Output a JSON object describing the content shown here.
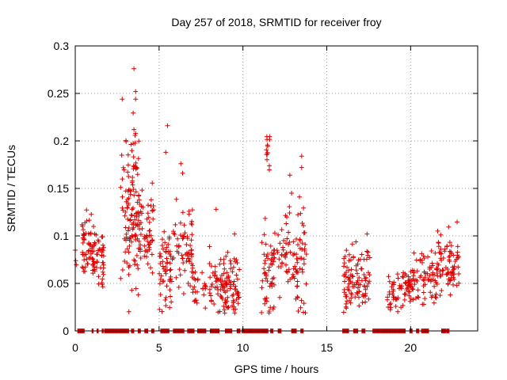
{
  "chart_data": {
    "type": "scatter",
    "title": "Day 257 of 2018, SRMTID for receiver froy",
    "xlabel": "GPS time / hours",
    "ylabel": "SRMTID / TECUs",
    "xlim": [
      0,
      24
    ],
    "ylim": [
      0,
      0.3
    ],
    "xticks": [
      0,
      5,
      10,
      15,
      20
    ],
    "xtick_labels": [
      "0",
      "5",
      "10",
      "15",
      "20"
    ],
    "yticks": [
      0,
      0.05,
      0.1,
      0.15,
      0.2,
      0.25,
      0.3
    ],
    "ytick_labels": [
      "0",
      "0.05",
      "0.1",
      "0.15",
      "0.2",
      "0.25",
      "0.3"
    ],
    "grid": true,
    "marker": "+",
    "series_color": "#dd0000",
    "clusters": [
      {
        "x_range": [
          0.0,
          0.1
        ],
        "y_center": 0.075,
        "y_spread": 0.005,
        "count": 3
      },
      {
        "x_range": [
          0.4,
          1.0
        ],
        "y_center": 0.085,
        "y_spread": 0.015,
        "count": 45
      },
      {
        "x_range": [
          1.0,
          1.7
        ],
        "y_center": 0.08,
        "y_spread": 0.015,
        "count": 55
      },
      {
        "x_range": [
          2.7,
          3.1
        ],
        "y_center": 0.12,
        "y_spread": 0.04,
        "count": 25
      },
      {
        "x_range": [
          3.1,
          3.8
        ],
        "y_center": 0.13,
        "y_spread": 0.04,
        "count": 95
      },
      {
        "x_range": [
          3.8,
          4.7
        ],
        "y_center": 0.105,
        "y_spread": 0.02,
        "count": 60
      },
      {
        "x_range": [
          5.0,
          5.8
        ],
        "y_center": 0.06,
        "y_spread": 0.025,
        "count": 55
      },
      {
        "x_range": [
          5.8,
          7.0
        ],
        "y_center": 0.09,
        "y_spread": 0.025,
        "count": 65
      },
      {
        "x_range": [
          7.0,
          8.0
        ],
        "y_center": 0.045,
        "y_spread": 0.01,
        "count": 25
      },
      {
        "x_range": [
          8.0,
          9.0
        ],
        "y_center": 0.05,
        "y_spread": 0.017,
        "count": 60
      },
      {
        "x_range": [
          9.0,
          9.8
        ],
        "y_center": 0.05,
        "y_spread": 0.017,
        "count": 55
      },
      {
        "x_range": [
          11.1,
          11.9
        ],
        "y_center": 0.06,
        "y_spread": 0.02,
        "count": 55
      },
      {
        "x_range": [
          11.4,
          11.6
        ],
        "y_center": 0.19,
        "y_spread": 0.012,
        "count": 14
      },
      {
        "x_range": [
          12.0,
          13.3
        ],
        "y_center": 0.08,
        "y_spread": 0.025,
        "count": 60
      },
      {
        "x_range": [
          13.2,
          13.8
        ],
        "y_center": 0.075,
        "y_spread": 0.03,
        "count": 35
      },
      {
        "x_range": [
          16.0,
          16.5
        ],
        "y_center": 0.055,
        "y_spread": 0.015,
        "count": 40
      },
      {
        "x_range": [
          16.5,
          17.6
        ],
        "y_center": 0.06,
        "y_spread": 0.017,
        "count": 60
      },
      {
        "x_range": [
          18.6,
          19.5
        ],
        "y_center": 0.04,
        "y_spread": 0.01,
        "count": 35
      },
      {
        "x_range": [
          19.5,
          20.5
        ],
        "y_center": 0.045,
        "y_spread": 0.012,
        "count": 55
      },
      {
        "x_range": [
          20.5,
          21.6
        ],
        "y_center": 0.055,
        "y_spread": 0.015,
        "count": 55
      },
      {
        "x_range": [
          21.6,
          22.9
        ],
        "y_center": 0.07,
        "y_spread": 0.015,
        "count": 75
      }
    ],
    "outliers": [
      {
        "x": 3.5,
        "y": 0.276
      },
      {
        "x": 3.6,
        "y": 0.252
      },
      {
        "x": 3.6,
        "y": 0.244
      },
      {
        "x": 2.8,
        "y": 0.244
      },
      {
        "x": 3.5,
        "y": 0.212
      },
      {
        "x": 3.6,
        "y": 0.208
      },
      {
        "x": 5.5,
        "y": 0.216
      },
      {
        "x": 5.4,
        "y": 0.188
      },
      {
        "x": 6.3,
        "y": 0.176
      },
      {
        "x": 6.4,
        "y": 0.166
      },
      {
        "x": 8.4,
        "y": 0.128
      },
      {
        "x": 13.5,
        "y": 0.184
      },
      {
        "x": 13.5,
        "y": 0.172
      },
      {
        "x": 12.8,
        "y": 0.164
      },
      {
        "x": 12.9,
        "y": 0.145
      },
      {
        "x": 17.4,
        "y": 0.102
      },
      {
        "x": 21.8,
        "y": 0.101
      },
      {
        "x": 20.2,
        "y": 0.082
      },
      {
        "x": 11.9,
        "y": 0.103
      },
      {
        "x": 9.5,
        "y": 0.102
      }
    ],
    "zero_segments": [
      [
        0.15,
        0.55
      ],
      [
        1.0,
        1.1
      ],
      [
        1.3,
        1.4
      ],
      [
        1.6,
        1.7
      ],
      [
        1.75,
        3.2
      ],
      [
        3.35,
        3.5
      ],
      [
        3.75,
        3.9
      ],
      [
        4.15,
        4.35
      ],
      [
        4.55,
        4.7
      ],
      [
        5.1,
        5.6
      ],
      [
        5.85,
        6.5
      ],
      [
        6.7,
        7.1
      ],
      [
        7.3,
        7.8
      ],
      [
        8.05,
        8.6
      ],
      [
        8.95,
        9.35
      ],
      [
        9.65,
        9.85
      ],
      [
        9.95,
        11.5
      ],
      [
        11.65,
        11.8
      ],
      [
        12.1,
        12.3
      ],
      [
        12.9,
        13.2
      ],
      [
        13.45,
        13.6
      ],
      [
        15.95,
        16.3
      ],
      [
        16.6,
        16.85
      ],
      [
        17.1,
        17.3
      ],
      [
        17.75,
        19.7
      ],
      [
        19.95,
        20.1
      ],
      [
        20.35,
        20.5
      ],
      [
        20.65,
        21.1
      ],
      [
        21.85,
        22.1
      ],
      [
        22.15,
        22.3
      ]
    ]
  }
}
